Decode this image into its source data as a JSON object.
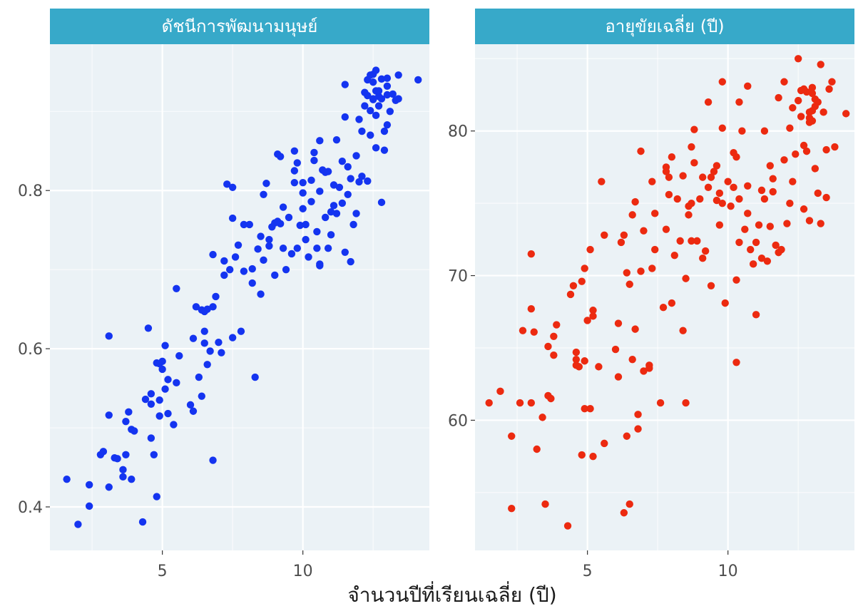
{
  "colors": {
    "panel_background": "#ebf2f6",
    "grid": "#ffffff",
    "strip_background": "#37a9c9",
    "strip_text": "#ffffff",
    "hdi_points": "#1434f0",
    "life_points": "#ec2a10"
  },
  "figure": {
    "xlabel": "จำนวนปีที่เรียนเฉลี่ย (ปี)"
  },
  "chart_data": [
    {
      "type": "scatter",
      "title": "ดัชนีการพัฒนามนุษย์",
      "xlim": [
        1.0,
        14.5
      ],
      "ylim": [
        0.345,
        0.985
      ],
      "x_ticks": [
        5,
        10
      ],
      "x_tick_labels": [
        "5",
        "10"
      ],
      "y_ticks": [
        0.4,
        0.6,
        0.8
      ],
      "y_tick_labels": [
        "0.4",
        "0.6",
        "0.8"
      ],
      "grid": true,
      "points": [
        [
          1.6,
          0.435
        ],
        [
          2.0,
          0.378
        ],
        [
          2.4,
          0.401
        ],
        [
          2.4,
          0.428
        ],
        [
          2.8,
          0.466
        ],
        [
          2.9,
          0.47
        ],
        [
          3.1,
          0.425
        ],
        [
          3.1,
          0.516
        ],
        [
          3.1,
          0.616
        ],
        [
          3.3,
          0.462
        ],
        [
          3.4,
          0.461
        ],
        [
          3.6,
          0.447
        ],
        [
          3.6,
          0.438
        ],
        [
          3.7,
          0.466
        ],
        [
          3.7,
          0.508
        ],
        [
          3.8,
          0.52
        ],
        [
          3.9,
          0.435
        ],
        [
          3.9,
          0.498
        ],
        [
          4.0,
          0.496
        ],
        [
          4.3,
          0.381
        ],
        [
          4.4,
          0.536
        ],
        [
          4.5,
          0.626
        ],
        [
          4.6,
          0.543
        ],
        [
          4.6,
          0.487
        ],
        [
          4.6,
          0.53
        ],
        [
          4.7,
          0.466
        ],
        [
          4.8,
          0.413
        ],
        [
          4.8,
          0.582
        ],
        [
          4.9,
          0.515
        ],
        [
          4.9,
          0.535
        ],
        [
          4.9,
          0.581
        ],
        [
          5.0,
          0.584
        ],
        [
          5.0,
          0.574
        ],
        [
          5.1,
          0.549
        ],
        [
          5.1,
          0.604
        ],
        [
          5.2,
          0.561
        ],
        [
          5.2,
          0.518
        ],
        [
          5.4,
          0.504
        ],
        [
          5.5,
          0.557
        ],
        [
          5.5,
          0.676
        ],
        [
          5.6,
          0.591
        ],
        [
          6.0,
          0.529
        ],
        [
          6.1,
          0.613
        ],
        [
          6.1,
          0.521
        ],
        [
          6.2,
          0.653
        ],
        [
          6.3,
          0.564
        ],
        [
          6.4,
          0.54
        ],
        [
          6.4,
          0.649
        ],
        [
          6.5,
          0.607
        ],
        [
          6.5,
          0.622
        ],
        [
          6.5,
          0.647
        ],
        [
          6.6,
          0.58
        ],
        [
          6.6,
          0.65
        ],
        [
          6.7,
          0.597
        ],
        [
          6.8,
          0.459
        ],
        [
          6.8,
          0.719
        ],
        [
          6.8,
          0.653
        ],
        [
          6.9,
          0.666
        ],
        [
          7.0,
          0.608
        ],
        [
          7.1,
          0.595
        ],
        [
          7.2,
          0.711
        ],
        [
          7.2,
          0.693
        ],
        [
          7.3,
          0.808
        ],
        [
          7.4,
          0.7
        ],
        [
          7.5,
          0.614
        ],
        [
          7.5,
          0.804
        ],
        [
          7.5,
          0.765
        ],
        [
          7.6,
          0.716
        ],
        [
          7.7,
          0.731
        ],
        [
          7.8,
          0.622
        ],
        [
          7.9,
          0.757
        ],
        [
          7.9,
          0.698
        ],
        [
          8.1,
          0.757
        ],
        [
          8.2,
          0.701
        ],
        [
          8.2,
          0.683
        ],
        [
          8.3,
          0.564
        ],
        [
          8.4,
          0.726
        ],
        [
          8.5,
          0.742
        ],
        [
          8.5,
          0.669
        ],
        [
          8.6,
          0.712
        ],
        [
          8.6,
          0.795
        ],
        [
          8.7,
          0.809
        ],
        [
          8.8,
          0.738
        ],
        [
          8.8,
          0.73
        ],
        [
          8.9,
          0.754
        ],
        [
          9.0,
          0.759
        ],
        [
          9.0,
          0.693
        ],
        [
          9.1,
          0.761
        ],
        [
          9.1,
          0.846
        ],
        [
          9.2,
          0.758
        ],
        [
          9.2,
          0.843
        ],
        [
          9.3,
          0.727
        ],
        [
          9.3,
          0.779
        ],
        [
          9.4,
          0.7
        ],
        [
          9.5,
          0.766
        ],
        [
          9.6,
          0.72
        ],
        [
          9.7,
          0.81
        ],
        [
          9.7,
          0.85
        ],
        [
          9.7,
          0.825
        ],
        [
          9.8,
          0.835
        ],
        [
          9.8,
          0.727
        ],
        [
          9.9,
          0.756
        ],
        [
          10.0,
          0.777
        ],
        [
          10.0,
          0.797
        ],
        [
          10.0,
          0.81
        ],
        [
          10.1,
          0.757
        ],
        [
          10.1,
          0.738
        ],
        [
          10.2,
          0.716
        ],
        [
          10.3,
          0.786
        ],
        [
          10.3,
          0.813
        ],
        [
          10.4,
          0.838
        ],
        [
          10.4,
          0.848
        ],
        [
          10.5,
          0.727
        ],
        [
          10.5,
          0.748
        ],
        [
          10.6,
          0.799
        ],
        [
          10.6,
          0.707
        ],
        [
          10.6,
          0.705
        ],
        [
          10.6,
          0.863
        ],
        [
          10.7,
          0.826
        ],
        [
          10.8,
          0.766
        ],
        [
          10.8,
          0.823
        ],
        [
          10.9,
          0.824
        ],
        [
          10.9,
          0.727
        ],
        [
          11.0,
          0.744
        ],
        [
          11.0,
          0.773
        ],
        [
          11.1,
          0.781
        ],
        [
          11.1,
          0.807
        ],
        [
          11.2,
          0.864
        ],
        [
          11.2,
          0.771
        ],
        [
          11.3,
          0.804
        ],
        [
          11.4,
          0.837
        ],
        [
          11.4,
          0.784
        ],
        [
          11.5,
          0.722
        ],
        [
          11.5,
          0.893
        ],
        [
          11.6,
          0.795
        ],
        [
          11.6,
          0.83
        ],
        [
          11.7,
          0.71
        ],
        [
          11.7,
          0.815
        ],
        [
          11.8,
          0.757
        ],
        [
          11.9,
          0.771
        ],
        [
          11.9,
          0.844
        ],
        [
          12.0,
          0.811
        ],
        [
          12.0,
          0.89
        ],
        [
          12.1,
          0.875
        ],
        [
          12.1,
          0.818
        ],
        [
          12.2,
          0.924
        ],
        [
          12.2,
          0.907
        ],
        [
          12.3,
          0.812
        ],
        [
          12.4,
          0.87
        ],
        [
          12.4,
          0.901
        ],
        [
          12.5,
          0.937
        ],
        [
          12.5,
          0.916
        ],
        [
          12.5,
          0.947
        ],
        [
          12.6,
          0.854
        ],
        [
          12.6,
          0.895
        ],
        [
          12.7,
          0.919
        ],
        [
          12.7,
          0.926
        ],
        [
          12.8,
          0.785
        ],
        [
          12.8,
          0.916
        ],
        [
          12.8,
          0.941
        ],
        [
          12.9,
          0.875
        ],
        [
          12.9,
          0.851
        ],
        [
          13.0,
          0.921
        ],
        [
          13.0,
          0.932
        ],
        [
          13.0,
          0.883
        ],
        [
          13.1,
          0.9
        ],
        [
          13.2,
          0.922
        ],
        [
          13.3,
          0.914
        ],
        [
          13.4,
          0.916
        ],
        [
          13.4,
          0.946
        ],
        [
          14.1,
          0.94
        ],
        [
          12.3,
          0.94
        ],
        [
          12.6,
          0.952
        ],
        [
          12.4,
          0.946
        ],
        [
          13.0,
          0.942
        ],
        [
          12.6,
          0.926
        ],
        [
          12.3,
          0.92
        ],
        [
          12.7,
          0.907
        ],
        [
          12.5,
          0.915
        ],
        [
          11.5,
          0.934
        ]
      ]
    },
    {
      "type": "scatter",
      "title": "อายุขัยเฉลี่ย (ปี)",
      "xlim": [
        1.0,
        14.5
      ],
      "ylim": [
        51.0,
        86.0
      ],
      "x_ticks": [
        5,
        10
      ],
      "x_tick_labels": [
        "5",
        "10"
      ],
      "y_ticks": [
        60,
        70,
        80
      ],
      "y_tick_labels": [
        "60",
        "70",
        "80"
      ],
      "grid": true,
      "points": [
        [
          1.5,
          61.2
        ],
        [
          1.9,
          62.0
        ],
        [
          2.3,
          58.9
        ],
        [
          2.3,
          53.9
        ],
        [
          2.6,
          61.2
        ],
        [
          2.7,
          66.2
        ],
        [
          3.0,
          61.2
        ],
        [
          3.0,
          71.5
        ],
        [
          3.0,
          67.7
        ],
        [
          3.1,
          66.1
        ],
        [
          3.2,
          58.0
        ],
        [
          3.4,
          60.2
        ],
        [
          3.5,
          54.2
        ],
        [
          3.6,
          65.1
        ],
        [
          3.6,
          61.7
        ],
        [
          3.7,
          61.5
        ],
        [
          3.8,
          65.8
        ],
        [
          3.8,
          64.5
        ],
        [
          3.9,
          66.6
        ],
        [
          4.3,
          52.7
        ],
        [
          4.4,
          68.7
        ],
        [
          4.5,
          69.3
        ],
        [
          4.6,
          64.7
        ],
        [
          4.6,
          64.2
        ],
        [
          4.6,
          63.8
        ],
        [
          4.7,
          63.7
        ],
        [
          4.8,
          69.6
        ],
        [
          4.8,
          57.6
        ],
        [
          4.9,
          64.1
        ],
        [
          4.9,
          70.5
        ],
        [
          4.9,
          60.8
        ],
        [
          5.0,
          66.9
        ],
        [
          5.1,
          60.8
        ],
        [
          5.1,
          71.8
        ],
        [
          5.2,
          57.5
        ],
        [
          5.2,
          67.2
        ],
        [
          5.2,
          67.6
        ],
        [
          5.4,
          63.7
        ],
        [
          5.5,
          76.5
        ],
        [
          5.6,
          58.4
        ],
        [
          5.6,
          72.8
        ],
        [
          6.0,
          64.9
        ],
        [
          6.1,
          63.0
        ],
        [
          6.1,
          66.7
        ],
        [
          6.2,
          72.3
        ],
        [
          6.3,
          72.8
        ],
        [
          6.3,
          53.6
        ],
        [
          6.4,
          70.2
        ],
        [
          6.4,
          58.9
        ],
        [
          6.5,
          54.2
        ],
        [
          6.5,
          69.4
        ],
        [
          6.6,
          64.2
        ],
        [
          6.6,
          74.2
        ],
        [
          6.7,
          66.3
        ],
        [
          6.7,
          75.1
        ],
        [
          6.8,
          59.4
        ],
        [
          6.8,
          60.4
        ],
        [
          6.9,
          70.3
        ],
        [
          6.9,
          78.6
        ],
        [
          7.0,
          73.1
        ],
        [
          7.0,
          63.4
        ],
        [
          7.2,
          63.6
        ],
        [
          7.2,
          63.8
        ],
        [
          7.3,
          76.5
        ],
        [
          7.3,
          70.5
        ],
        [
          7.4,
          74.3
        ],
        [
          7.4,
          71.8
        ],
        [
          7.6,
          61.2
        ],
        [
          7.7,
          67.8
        ],
        [
          7.8,
          73.2
        ],
        [
          7.8,
          77.2
        ],
        [
          7.8,
          77.5
        ],
        [
          7.9,
          76.8
        ],
        [
          7.9,
          75.6
        ],
        [
          8.0,
          68.1
        ],
        [
          8.0,
          78.2
        ],
        [
          8.1,
          71.4
        ],
        [
          8.2,
          75.3
        ],
        [
          8.3,
          72.4
        ],
        [
          8.4,
          76.9
        ],
        [
          8.4,
          66.2
        ],
        [
          8.5,
          61.2
        ],
        [
          8.5,
          69.8
        ],
        [
          8.6,
          74.2
        ],
        [
          8.6,
          74.8
        ],
        [
          8.7,
          75.0
        ],
        [
          8.7,
          78.9
        ],
        [
          8.7,
          72.4
        ],
        [
          8.8,
          80.1
        ],
        [
          8.8,
          77.8
        ],
        [
          8.9,
          72.4
        ],
        [
          9.0,
          75.3
        ],
        [
          9.1,
          76.8
        ],
        [
          9.1,
          71.2
        ],
        [
          9.2,
          71.7
        ],
        [
          9.3,
          82.0
        ],
        [
          9.3,
          76.1
        ],
        [
          9.4,
          69.3
        ],
        [
          9.4,
          76.8
        ],
        [
          9.5,
          77.2
        ],
        [
          9.6,
          77.6
        ],
        [
          9.6,
          75.2
        ],
        [
          9.7,
          73.5
        ],
        [
          9.7,
          75.7
        ],
        [
          9.8,
          75.0
        ],
        [
          9.8,
          80.2
        ],
        [
          9.8,
          83.4
        ],
        [
          9.9,
          68.1
        ],
        [
          10.0,
          76.5
        ],
        [
          10.1,
          74.8
        ],
        [
          10.2,
          78.5
        ],
        [
          10.2,
          76.1
        ],
        [
          10.3,
          69.7
        ],
        [
          10.3,
          64.0
        ],
        [
          10.3,
          78.2
        ],
        [
          10.4,
          72.3
        ],
        [
          10.4,
          75.3
        ],
        [
          10.4,
          82.0
        ],
        [
          10.5,
          80.0
        ],
        [
          10.6,
          73.2
        ],
        [
          10.7,
          76.2
        ],
        [
          10.7,
          74.3
        ],
        [
          10.7,
          83.1
        ],
        [
          10.8,
          71.8
        ],
        [
          10.9,
          70.8
        ],
        [
          11.0,
          72.3
        ],
        [
          11.0,
          67.3
        ],
        [
          11.1,
          73.5
        ],
        [
          11.2,
          71.2
        ],
        [
          11.2,
          75.9
        ],
        [
          11.3,
          80.0
        ],
        [
          11.3,
          75.3
        ],
        [
          11.4,
          71.0
        ],
        [
          11.5,
          77.6
        ],
        [
          11.5,
          73.4
        ],
        [
          11.6,
          75.8
        ],
        [
          11.6,
          76.7
        ],
        [
          11.7,
          72.1
        ],
        [
          11.8,
          82.3
        ],
        [
          11.8,
          71.6
        ],
        [
          11.9,
          71.8
        ],
        [
          12.0,
          78.0
        ],
        [
          12.0,
          83.4
        ],
        [
          12.1,
          73.6
        ],
        [
          12.2,
          80.2
        ],
        [
          12.2,
          75.0
        ],
        [
          12.3,
          76.5
        ],
        [
          12.3,
          81.6
        ],
        [
          12.4,
          78.4
        ],
        [
          12.5,
          85.0
        ],
        [
          12.5,
          82.1
        ],
        [
          12.6,
          81.0
        ],
        [
          12.6,
          82.8
        ],
        [
          12.7,
          79.0
        ],
        [
          12.7,
          74.6
        ],
        [
          12.8,
          78.6
        ],
        [
          12.9,
          80.6
        ],
        [
          12.9,
          73.8
        ],
        [
          13.0,
          82.6
        ],
        [
          13.0,
          80.7
        ],
        [
          13.1,
          77.4
        ],
        [
          13.1,
          81.7
        ],
        [
          13.2,
          75.7
        ],
        [
          13.3,
          84.6
        ],
        [
          13.3,
          73.6
        ],
        [
          13.4,
          81.3
        ],
        [
          13.5,
          75.4
        ],
        [
          13.5,
          78.7
        ],
        [
          13.6,
          82.9
        ],
        [
          13.7,
          83.4
        ],
        [
          13.8,
          78.9
        ],
        [
          14.2,
          81.2
        ],
        [
          12.8,
          82.7
        ],
        [
          12.9,
          81.3
        ],
        [
          13.0,
          83.0
        ],
        [
          12.7,
          82.9
        ],
        [
          13.1,
          82.2
        ],
        [
          13.2,
          82.0
        ],
        [
          12.9,
          80.9
        ],
        [
          13.0,
          81.4
        ]
      ]
    }
  ]
}
